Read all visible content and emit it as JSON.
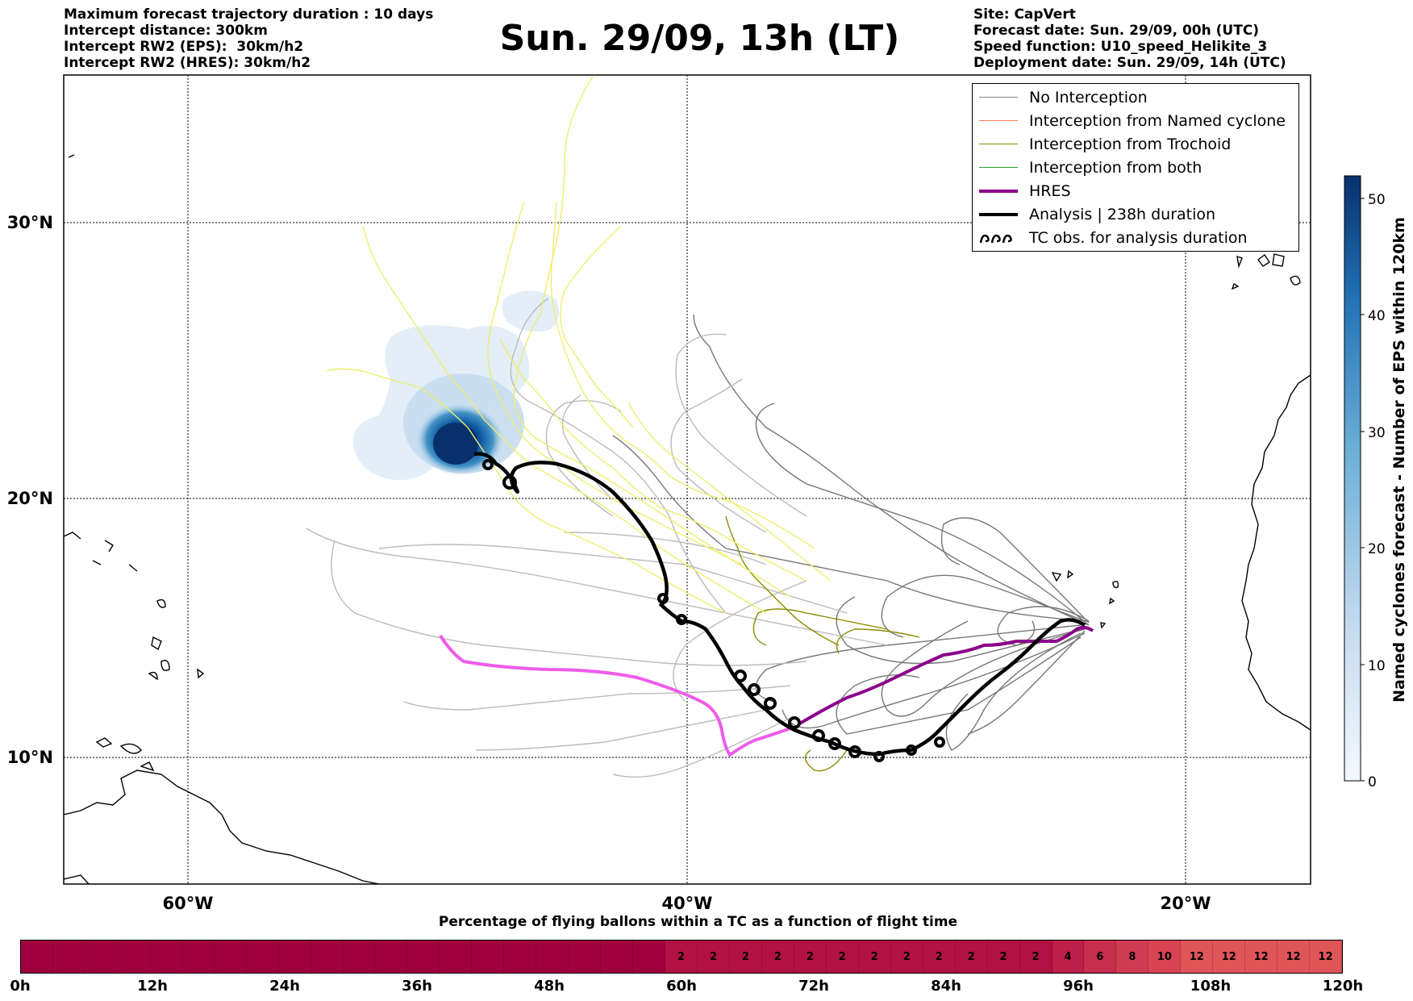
{
  "header_left": [
    "Maximum forecast trajectory duration : 10 days",
    "Intercept distance: 300km",
    "Intercept RW2 (EPS):  30km/h2",
    "Intercept RW2 (HRES): 30km/h2"
  ],
  "header_right": [
    "Site: CapVert",
    "Forecast date: Sun. 29/09, 00h (UTC)",
    "Speed function: U10_speed_Helikite_3",
    "Deployment date: Sun. 29/09, 14h (UTC)"
  ],
  "title": "Sun. 29/09, 13h (LT)",
  "map": {
    "lat_labels": [
      "30°N",
      "20°N",
      "10°N"
    ],
    "lon_labels": [
      "60°W",
      "40°W",
      "20°W"
    ],
    "grid": "dotted",
    "site_lon": -22.9,
    "site_lat": 15.0
  },
  "legend": [
    {
      "label": "No Interception",
      "color": "#888888",
      "style": "line"
    },
    {
      "label": "Interception from Named cyclone",
      "color": "#ff7f50",
      "style": "line"
    },
    {
      "label": "Interception from Trochoid",
      "color": "#8b8b00",
      "style": "line"
    },
    {
      "label": "Interception from both",
      "color": "#2ca02c",
      "style": "line"
    },
    {
      "label": "HRES",
      "color": "#8b008b",
      "style": "thick"
    },
    {
      "label": "Analysis | 238h duration",
      "color": "#000000",
      "style": "thick"
    },
    {
      "label": "TC obs. for analysis duration",
      "color": "#000000",
      "style": "loops"
    }
  ],
  "colorbar": {
    "label": "Named cyclones forecast - Number of EPS within 120km",
    "ticks": [
      "50",
      "40",
      "30",
      "20",
      "10",
      "0"
    ],
    "min": 0,
    "max": 52,
    "colors": [
      "#f4f8fd",
      "#c6dbef",
      "#6baed6",
      "#2171b5",
      "#08306b"
    ]
  },
  "flight": {
    "title": "Percentage of flying ballons within a TC as a function of flight time",
    "tick_labels": [
      "0h",
      "12h",
      "24h",
      "36h",
      "48h",
      "60h",
      "72h",
      "84h",
      "96h",
      "108h",
      "120h"
    ],
    "cells": [
      "",
      "",
      "",
      "",
      "",
      "",
      "",
      "",
      "",
      "",
      "",
      "",
      "",
      "",
      "",
      "",
      "",
      "",
      "",
      "",
      "2",
      "2",
      "2",
      "2",
      "2",
      "2",
      "2",
      "2",
      "2",
      "2",
      "2",
      "2",
      "4",
      "6",
      "8",
      "10",
      "12",
      "12",
      "12",
      "12",
      "12"
    ],
    "colors": {
      "0": "#a0003c",
      "2": "#b11243",
      "4": "#bd1f48",
      "6": "#c72d4d",
      "8": "#cf3b51",
      "10": "#d84454",
      "12": "#e05558"
    }
  }
}
